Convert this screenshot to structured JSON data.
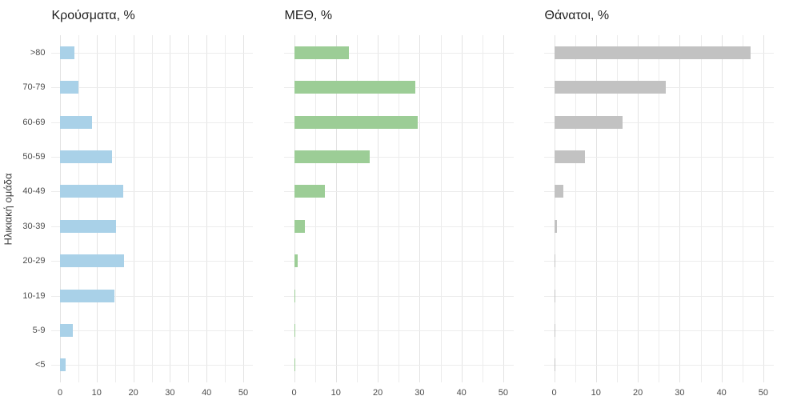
{
  "figure": {
    "y_axis_title": "Ηλικιακή ομάδα",
    "background": "#ffffff",
    "text_color": "#4d4d4d",
    "gridline_color": "#ececec"
  },
  "chart_data": [
    {
      "type": "bar",
      "orientation": "horizontal",
      "title": "Κρούσματα, %",
      "bar_color": "#a9d1e8",
      "categories": [
        ">80",
        "70-79",
        "60-69",
        "50-59",
        "40-49",
        "30-39",
        "20-29",
        "10-19",
        "5-9",
        "<5"
      ],
      "values": [
        3.9,
        5.0,
        8.7,
        14.1,
        17.2,
        15.3,
        17.5,
        14.8,
        3.4,
        1.6
      ],
      "x_ticks": [
        0,
        10,
        20,
        30,
        40,
        50
      ],
      "x_minor_step": 5,
      "xlim": [
        0,
        50
      ],
      "grid": true,
      "show_category_labels": true
    },
    {
      "type": "bar",
      "orientation": "horizontal",
      "title": "ΜΕΘ, %",
      "bar_color": "#9ccd96",
      "categories": [
        ">80",
        "70-79",
        "60-69",
        "50-59",
        "40-49",
        "30-39",
        "20-29",
        "10-19",
        "5-9",
        "<5"
      ],
      "values": [
        13.1,
        29.0,
        29.5,
        18.1,
        7.4,
        2.5,
        0.8,
        0.3,
        0.1,
        0.2
      ],
      "x_ticks": [
        0,
        10,
        20,
        30,
        40,
        50
      ],
      "x_minor_step": 5,
      "xlim": [
        0,
        50
      ],
      "grid": true,
      "show_category_labels": false
    },
    {
      "type": "bar",
      "orientation": "horizontal",
      "title": "Θάνατοι, %",
      "bar_color": "#c2c2c2",
      "categories": [
        ">80",
        "70-79",
        "60-69",
        "50-59",
        "40-49",
        "30-39",
        "20-29",
        "10-19",
        "5-9",
        "<5"
      ],
      "values": [
        47.0,
        26.6,
        16.4,
        7.3,
        2.2,
        0.7,
        0.1,
        0.2,
        0.05,
        0.1
      ],
      "x_ticks": [
        0,
        10,
        20,
        30,
        40,
        50
      ],
      "x_minor_step": 5,
      "xlim": [
        0,
        50
      ],
      "grid": true,
      "show_category_labels": false
    }
  ]
}
